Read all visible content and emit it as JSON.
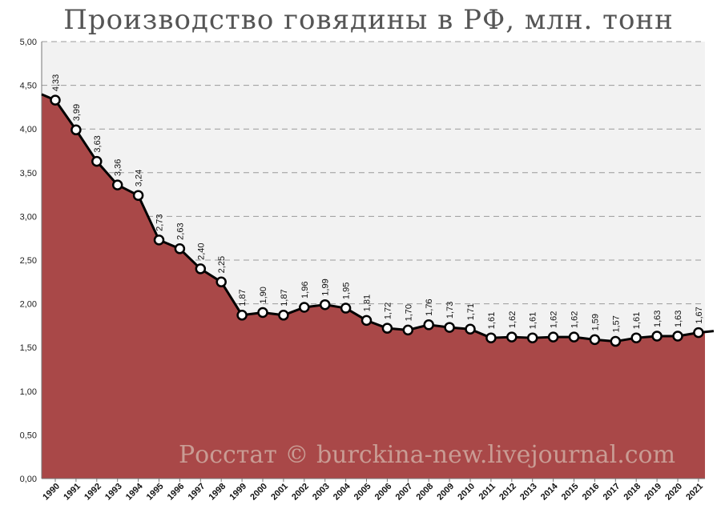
{
  "chart_data": {
    "type": "area",
    "title": "Производство говядины в РФ, млн. тонн",
    "watermark": "Росстат © burckina-new.livejournal.com",
    "categories": [
      "1990",
      "1991",
      "1992",
      "1993",
      "1994",
      "1995",
      "1996",
      "1997",
      "1998",
      "1999",
      "2000",
      "2001",
      "2002",
      "2003",
      "2004",
      "2005",
      "2006",
      "2007",
      "2008",
      "2009",
      "2010",
      "2011",
      "2012",
      "2013",
      "2014",
      "2015",
      "2016",
      "2017",
      "2018",
      "2019",
      "2020",
      "2021"
    ],
    "values": [
      4.33,
      3.99,
      3.63,
      3.36,
      3.24,
      2.73,
      2.63,
      2.4,
      2.25,
      1.87,
      1.9,
      1.87,
      1.96,
      1.99,
      1.95,
      1.81,
      1.72,
      1.7,
      1.76,
      1.73,
      1.71,
      1.61,
      1.62,
      1.61,
      1.62,
      1.62,
      1.59,
      1.57,
      1.61,
      1.63,
      1.63,
      1.67
    ],
    "value_labels": [
      "4,33",
      "3,99",
      "3,63",
      "3,36",
      "3,24",
      "2,73",
      "2,63",
      "2,40",
      "2,25",
      "1,87",
      "1,90",
      "1,87",
      "1,96",
      "1,99",
      "1,95",
      "1,81",
      "1,72",
      "1,70",
      "1,76",
      "1,73",
      "1,71",
      "1,61",
      "1,62",
      "1,61",
      "1,62",
      "1,62",
      "1,59",
      "1,57",
      "1,61",
      "1,63",
      "1,63",
      "1,67"
    ],
    "yticks": [
      0,
      0.5,
      1,
      1.5,
      2,
      2.5,
      3,
      3.5,
      4,
      4.5,
      5
    ],
    "ytick_labels": [
      "0,00",
      "0,50",
      "1,00",
      "1,50",
      "2,00",
      "2,50",
      "3,00",
      "3,50",
      "4,00",
      "4,50",
      "5,00"
    ],
    "ylim": [
      0,
      5
    ],
    "grid": true,
    "colors": {
      "area": "#a94848",
      "line": "#000000",
      "marker_fill": "#ffffff",
      "plot_bg": "#f2f2f2",
      "grid": "#9a9a9a"
    }
  }
}
